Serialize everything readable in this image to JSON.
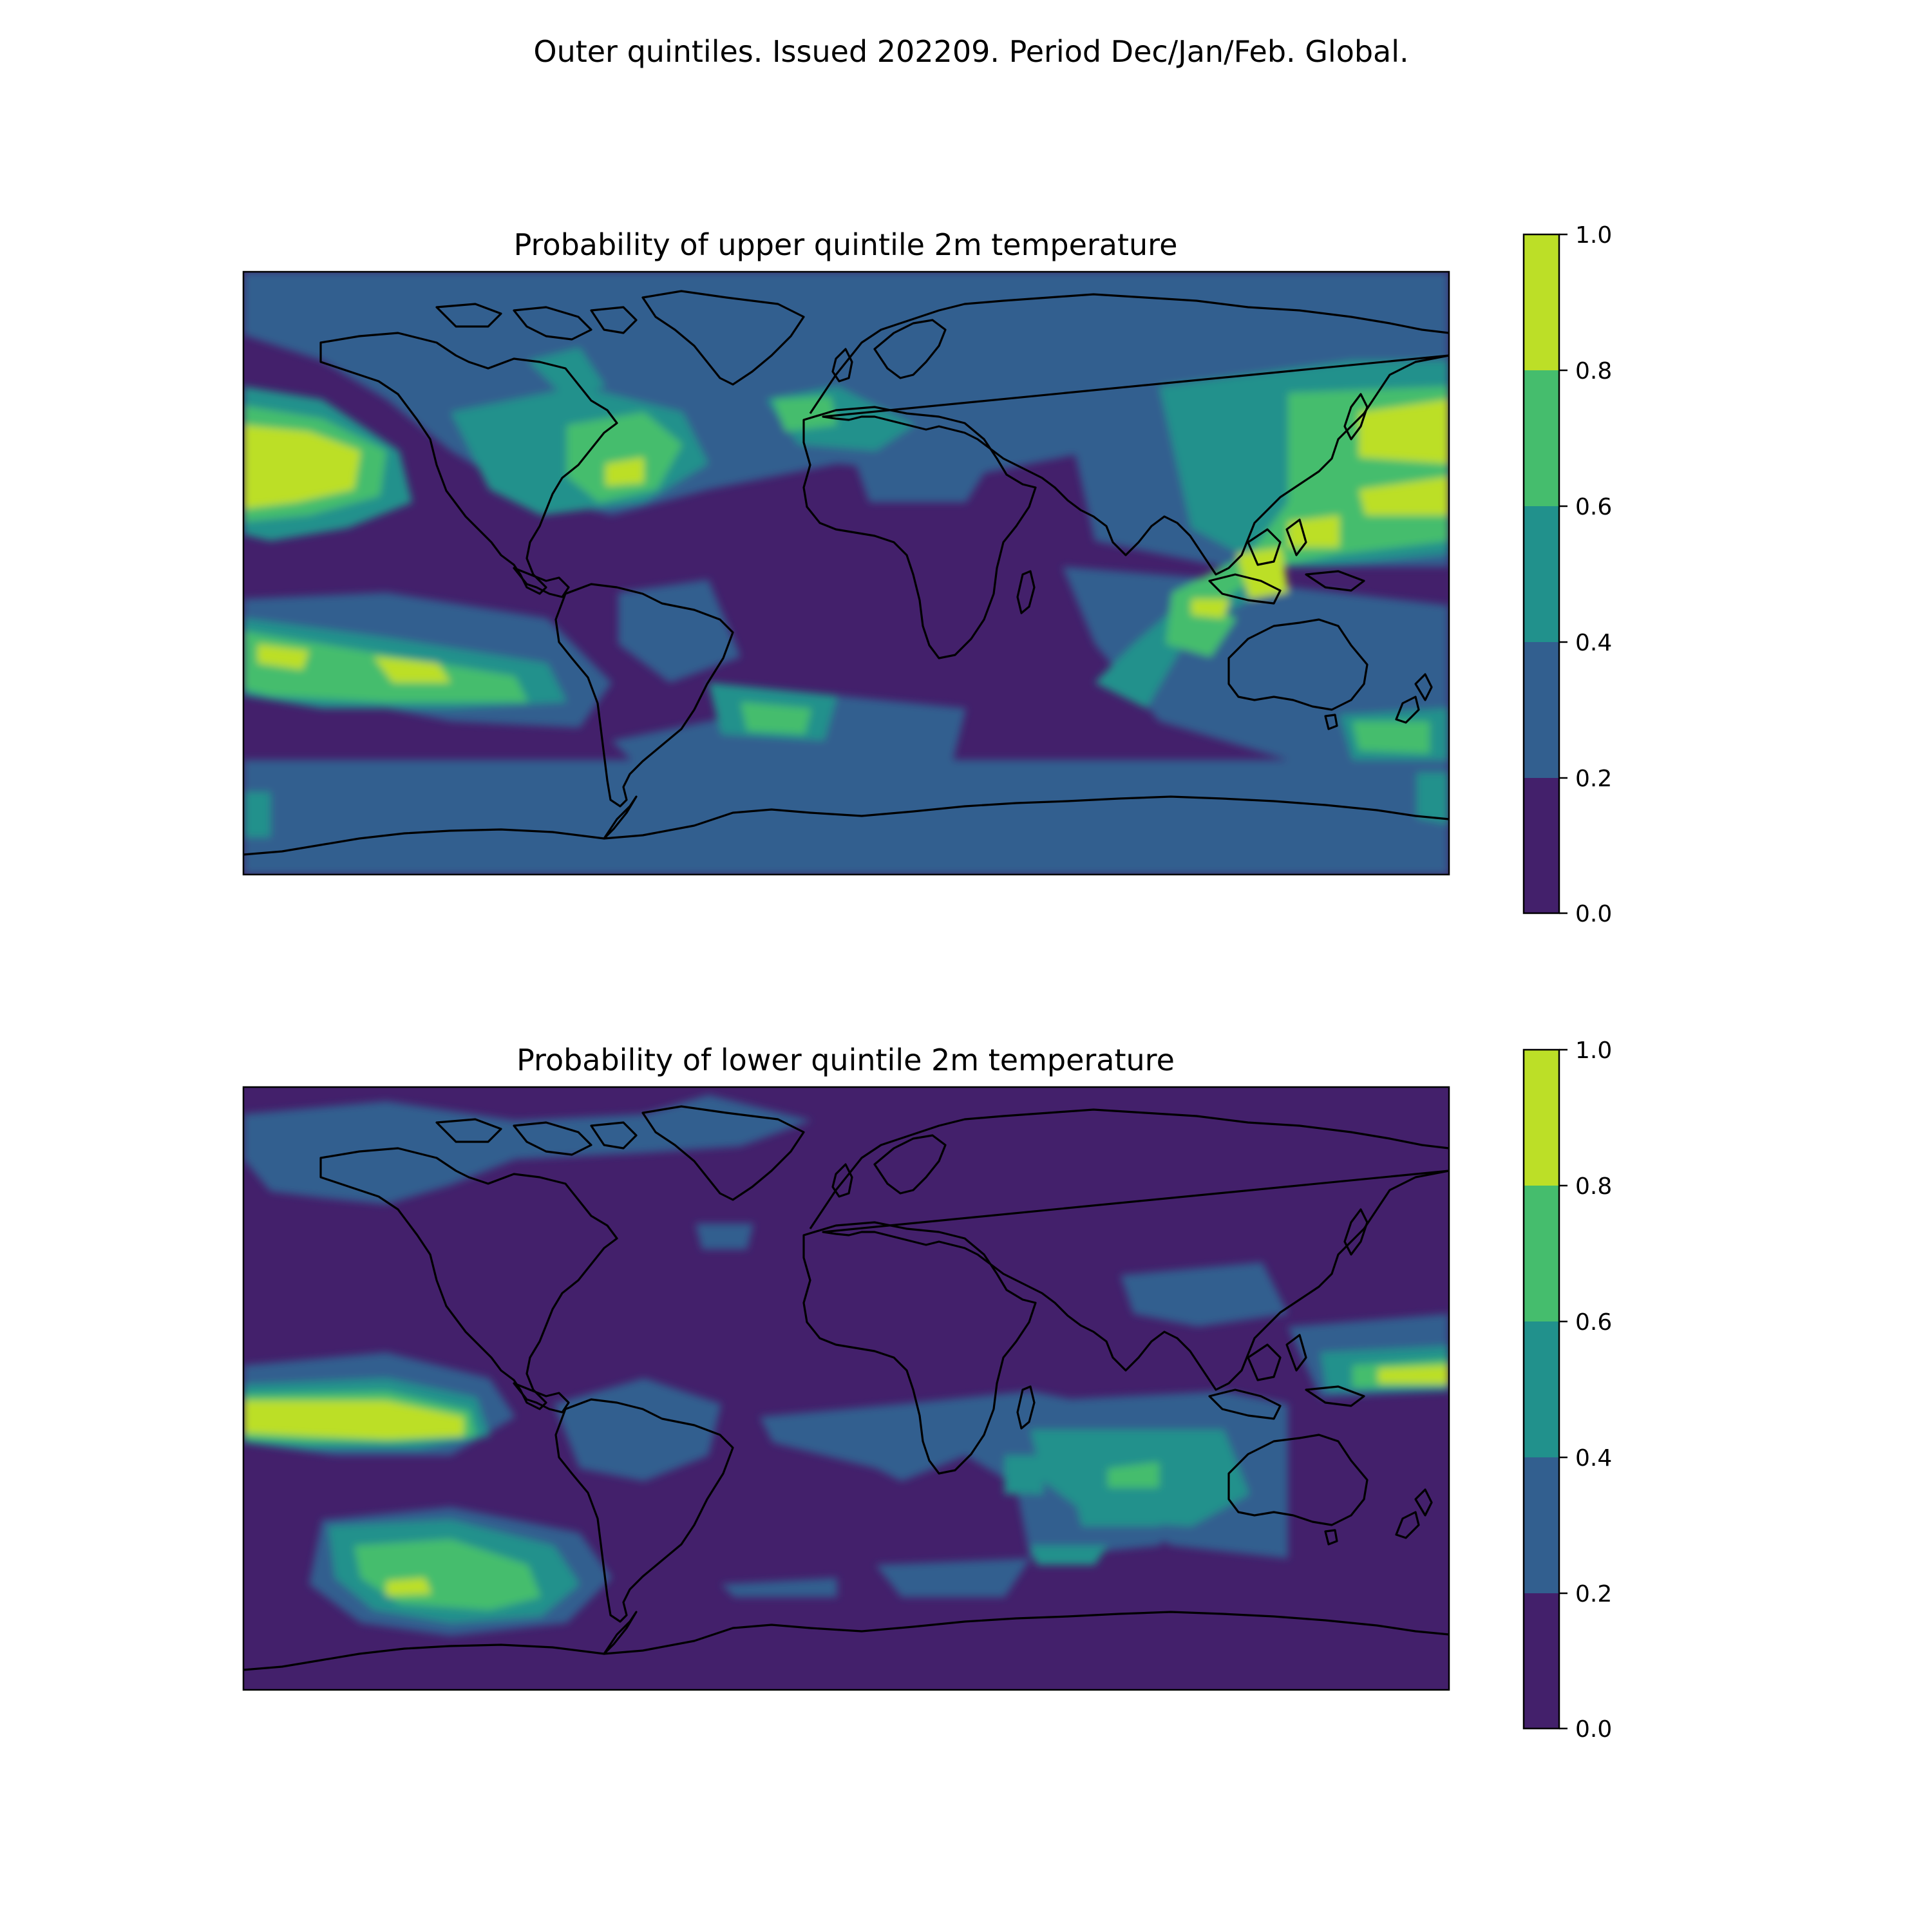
{
  "figure": {
    "suptitle": "Outer quintiles. Issued 202209. Period Dec/Jan/Feb. Global."
  },
  "colormap": {
    "levels": [
      0.0,
      0.2,
      0.4,
      0.6,
      0.8,
      1.0
    ],
    "tick_labels": [
      "0.0",
      "0.2",
      "0.4",
      "0.6",
      "0.8",
      "1.0"
    ],
    "colors": [
      "#43206b",
      "#325f8f",
      "#21918c",
      "#45bd6d",
      "#bcdf27"
    ],
    "coastline_color": "#000000"
  },
  "maps": [
    {
      "id": "upper",
      "title": "Probability of upper quintile 2m temperature",
      "colorbar_ticks": [
        "0.0",
        "0.2",
        "0.4",
        "0.6",
        "0.8",
        "1.0"
      ]
    },
    {
      "id": "lower",
      "title": "Probability of lower quintile 2m temperature",
      "colorbar_ticks": [
        "0.0",
        "0.2",
        "0.4",
        "0.6",
        "0.8",
        "1.0"
      ]
    }
  ]
}
